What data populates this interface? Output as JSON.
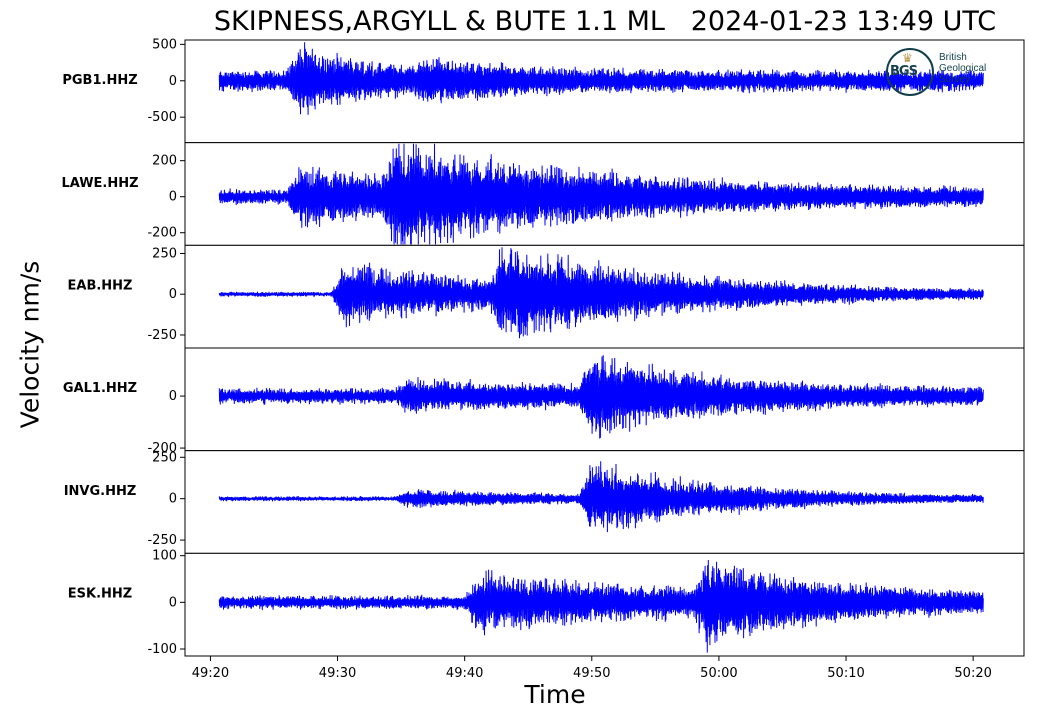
{
  "chart_data": {
    "type": "line",
    "title": "SKIPNESS,ARGYLL & BUTE 1.1 ML   2024-01-23 13:49 UTC",
    "xlabel": "Time",
    "ylabel": "Velocity nm/s",
    "line_color": "#0000ff",
    "x_ticks": [
      "49:20",
      "49:30",
      "49:40",
      "49:50",
      "50:00",
      "50:10",
      "50:20"
    ],
    "xlim": [
      "49:18",
      "50:24"
    ],
    "trace_span": [
      "49:20.7",
      "50:20.8"
    ],
    "grid": false,
    "panels": [
      {
        "station": "PGB1.HHZ",
        "yticks": [
          "500",
          "0",
          "-500"
        ],
        "ytick_values": [
          500,
          0,
          -500
        ],
        "ylim": [
          -850,
          560
        ],
        "noise_amplitude": 120,
        "events": [
          {
            "time": 26.0,
            "peak": 500,
            "min": -800,
            "decay_s": 6
          },
          {
            "time": 36.0,
            "peak": 200,
            "decay_s": 8
          }
        ]
      },
      {
        "station": "LAWE.HHZ",
        "yticks": [
          "200",
          "0",
          "-200"
        ],
        "ytick_values": [
          200,
          0,
          -200
        ],
        "ylim": [
          -270,
          300
        ],
        "noise_amplitude": 35,
        "events": [
          {
            "time": 26.0,
            "peak": 170,
            "decay_s": 20
          },
          {
            "time": 33.5,
            "peak": 270,
            "min": -250,
            "decay_s": 14
          }
        ]
      },
      {
        "station": "EAB.HHZ",
        "yticks": [
          "250",
          "0",
          "-250"
        ],
        "ytick_values": [
          250,
          0,
          -250
        ],
        "ylim": [
          -330,
          300
        ],
        "noise_amplitude": 12,
        "events": [
          {
            "time": 29.5,
            "peak": 230,
            "min": -300,
            "decay_s": 15
          },
          {
            "time": 42.0,
            "peak": 290,
            "min": -230,
            "decay_s": 14
          }
        ]
      },
      {
        "station": "GAL1.HHZ",
        "yticks": [
          "0",
          "-200"
        ],
        "ytick_values": [
          0,
          -200
        ],
        "ylim": [
          -210,
          185
        ],
        "noise_amplitude": 25,
        "events": [
          {
            "time": 34.5,
            "peak": 55,
            "decay_s": 14
          },
          {
            "time": 49.0,
            "peak": 170,
            "min": -200,
            "decay_s": 10
          }
        ]
      },
      {
        "station": "INVG.HHZ",
        "yticks": [
          "250",
          "0",
          "-250"
        ],
        "ytick_values": [
          250,
          0,
          -250
        ],
        "ylim": [
          -330,
          290
        ],
        "noise_amplitude": 12,
        "events": [
          {
            "time": 34.5,
            "peak": 60,
            "decay_s": 14
          },
          {
            "time": 49.0,
            "peak": 270,
            "min": -310,
            "decay_s": 10
          }
        ]
      },
      {
        "station": "ESK.HHZ",
        "yticks": [
          "100",
          "0",
          "-100"
        ],
        "ytick_values": [
          100,
          0,
          -100
        ],
        "ylim": [
          -115,
          105
        ],
        "noise_amplitude": 12,
        "events": [
          {
            "time": 40.0,
            "peak": 65,
            "min": -75,
            "decay_s": 18
          },
          {
            "time": 58.0,
            "peak": 95,
            "min": -105,
            "decay_s": 9
          }
        ]
      }
    ]
  },
  "logo": {
    "text": [
      "British",
      "Geological",
      "Survey"
    ],
    "mark": "BGS",
    "icon": "crown-icon"
  }
}
